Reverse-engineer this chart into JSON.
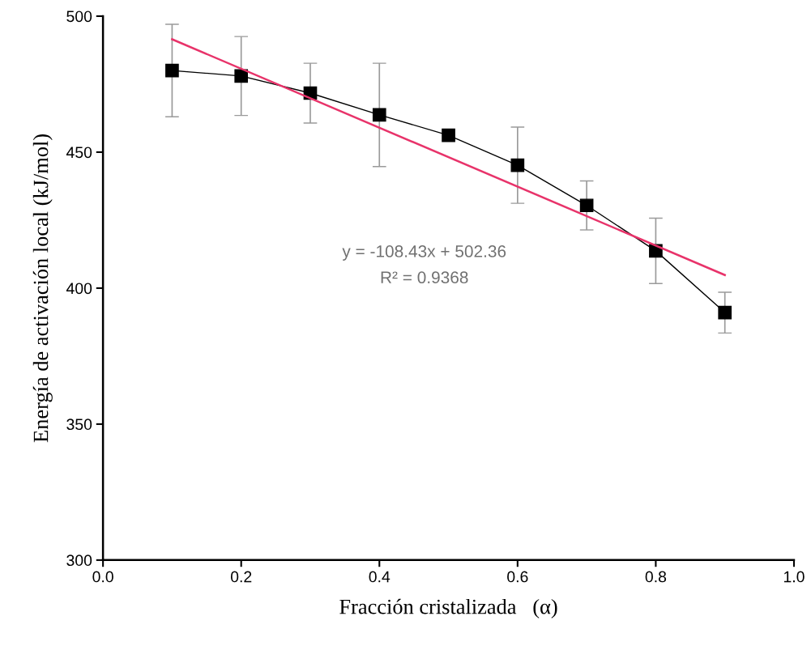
{
  "chart_data": {
    "type": "line",
    "xlabel": "Fracción cristalizada   (α)",
    "ylabel": "Energía de activación local (kJ/mol)",
    "x": [
      0.1,
      0.2,
      0.3,
      0.4,
      0.5,
      0.6,
      0.7,
      0.8,
      0.9
    ],
    "series": [
      {
        "color": "#000000",
        "marker": "square",
        "values": [
          480,
          478,
          471.7,
          463.7,
          456.2,
          445.2,
          430.4,
          413.7,
          391
        ],
        "errors": [
          17,
          14.5,
          11,
          19,
          null,
          14,
          9,
          12,
          7.5
        ]
      },
      {
        "color": "#e8336a",
        "marker": "none",
        "x": [
          0.1,
          0.9
        ],
        "values": [
          491.5,
          404.8
        ]
      }
    ],
    "annotations": [
      "y = -108.43x + 502.36",
      "R² = 0.9368"
    ],
    "xlim": [
      0.0,
      1.0
    ],
    "xticks": [
      {
        "value": 0.0,
        "label": "0.0"
      },
      0.2,
      0.4,
      0.6,
      0.8,
      {
        "value": 1.0,
        "label": "1.0"
      }
    ],
    "ylim": [
      300,
      500
    ],
    "yticks": [
      300,
      350,
      400,
      450,
      500
    ],
    "grid": false,
    "legend": false
  }
}
